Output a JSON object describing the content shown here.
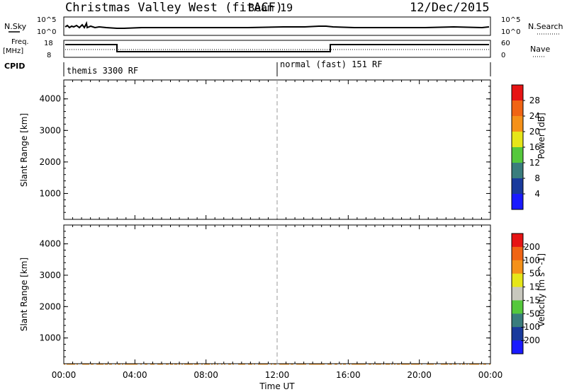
{
  "header": {
    "station": "Christmas Valley West (fitACF)",
    "beam": "Beam 19",
    "date": "12/Dec/2015"
  },
  "noise_panel": {
    "left_label": "N.Sky",
    "right_label": "N.Search",
    "left_ticks": [
      "10^5",
      "10^0"
    ],
    "right_ticks": [
      "10^5",
      "10^0"
    ]
  },
  "freq_panel": {
    "left_label_1": "Freq.",
    "left_label_2": "[MHz]",
    "right_label": "Nave",
    "left_ticks": [
      "18",
      "8"
    ],
    "right_ticks": [
      "60",
      "0"
    ]
  },
  "cpid": {
    "label": "CPID",
    "modes": [
      "themis 3300 RF",
      "normal (fast) 151 RF"
    ]
  },
  "x_axis": {
    "label": "Time UT",
    "ticks": [
      "00:00",
      "04:00",
      "08:00",
      "12:00",
      "16:00",
      "20:00",
      "00:00"
    ]
  },
  "y_axis": {
    "label": "Slant Range [km]",
    "ticks": [
      "1000",
      "2000",
      "3000",
      "4000"
    ]
  },
  "colors": {
    "blue": "#1a1aff",
    "navy": "#1a3a9c",
    "teal": "#3a7d7d",
    "green": "#55c83c",
    "yellow": "#e6e619",
    "orange": "#f59119",
    "dark_orange": "#f06414",
    "red": "#e61414",
    "gray": "#c8c8be"
  },
  "chart_data": [
    {
      "type": "heatmap",
      "name": "power",
      "colorbar_label": "Power [dB]",
      "colorbar_ticks": [
        "4",
        "8",
        "12",
        "16",
        "20",
        "24",
        "28"
      ],
      "xlim": [
        0,
        24
      ],
      "ylim": [
        180,
        4600
      ],
      "regions": [
        {
          "t0": 0.0,
          "t1": 0.7,
          "r0": 1450,
          "r1": 2000,
          "color": "orange"
        },
        {
          "t0": 0.15,
          "t1": 0.5,
          "r0": 3100,
          "r1": 3450,
          "color": "dark_orange"
        },
        {
          "t0": 1.6,
          "t1": 2.4,
          "r0": 1500,
          "r1": 1800,
          "color": "teal"
        },
        {
          "t0": 1.0,
          "t1": 5.0,
          "r0": 800,
          "r1": 1300,
          "color": "teal"
        },
        {
          "t0": 5.0,
          "t1": 11.0,
          "r0": 900,
          "r1": 1600,
          "color": "green"
        },
        {
          "t0": 6.0,
          "t1": 9.0,
          "r0": 1050,
          "r1": 1350,
          "color": "yellow"
        },
        {
          "t0": 12.0,
          "t1": 15.5,
          "r0": 800,
          "r1": 1250,
          "color": "teal"
        },
        {
          "t0": 14.3,
          "t1": 15.2,
          "r0": 850,
          "r1": 1100,
          "color": "yellow"
        },
        {
          "t0": 16.2,
          "t1": 24.0,
          "r0": 900,
          "r1": 1800,
          "color": "red"
        },
        {
          "t0": 16.3,
          "t1": 18.0,
          "r0": 1800,
          "r1": 2400,
          "color": "orange"
        },
        {
          "t0": 17.5,
          "t1": 23.5,
          "r0": 2000,
          "r1": 2800,
          "color": "green"
        },
        {
          "t0": 0.0,
          "t1": 24.0,
          "r0": 200,
          "r1": 400,
          "color": "navy"
        }
      ]
    },
    {
      "type": "heatmap",
      "name": "velocity",
      "colorbar_label": "Velocity [m s^-1]",
      "colorbar_ticks": [
        "200",
        "100",
        "50",
        "15",
        "-15",
        "-50",
        "-100",
        "-200"
      ],
      "xlim": [
        0,
        24
      ],
      "ylim": [
        180,
        4600
      ],
      "regions": [
        {
          "t0": 0.0,
          "t1": 1.0,
          "r0": 1300,
          "r1": 2000,
          "color": "gray"
        },
        {
          "t0": 0.15,
          "t1": 0.5,
          "r0": 3100,
          "r1": 3450,
          "color": "red"
        },
        {
          "t0": 1.6,
          "t1": 5.0,
          "r0": 1300,
          "r1": 1700,
          "color": "orange"
        },
        {
          "t0": 1.0,
          "t1": 12.0,
          "r0": 800,
          "r1": 1500,
          "color": "orange"
        },
        {
          "t0": 1.0,
          "t1": 4.0,
          "r0": 700,
          "r1": 1000,
          "color": "green"
        },
        {
          "t0": 6.0,
          "t1": 11.0,
          "r0": 750,
          "r1": 1200,
          "color": "gray"
        },
        {
          "t0": 12.0,
          "t1": 15.5,
          "r0": 800,
          "r1": 1250,
          "color": "green"
        },
        {
          "t0": 16.2,
          "t1": 24.0,
          "r0": 900,
          "r1": 2300,
          "color": "gray"
        },
        {
          "t0": 17.8,
          "t1": 19.0,
          "r0": 3100,
          "r1": 3600,
          "color": "red"
        },
        {
          "t0": 18.0,
          "t1": 24.0,
          "r0": 2200,
          "r1": 3000,
          "color": "gray"
        },
        {
          "t0": 0.0,
          "t1": 24.0,
          "r0": 200,
          "r1": 420,
          "color": "orange"
        }
      ]
    }
  ]
}
